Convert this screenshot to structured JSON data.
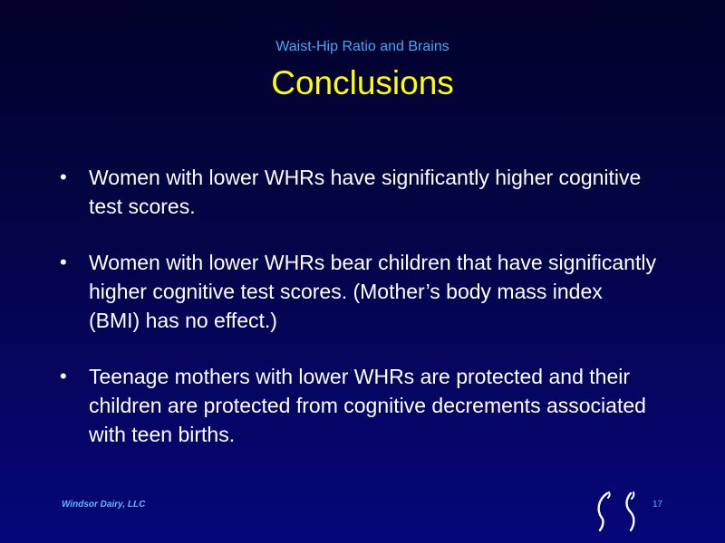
{
  "slide": {
    "subtitle": "Waist-Hip Ratio and Brains",
    "title": "Conclusions",
    "bullets": [
      "Women with lower WHRs have significantly higher cognitive test scores.",
      "Women with lower WHRs bear children that have significantly higher cognitive test scores. (Mother’s body mass index (BMI) has no effect.)",
      "Teenage mothers with lower WHRs are protected and their children are protected from cognitive decrements associated with teen births."
    ],
    "bullet_symbol": "•"
  },
  "footer": {
    "company": "Windsor Dairy, LLC",
    "page_number": "17"
  },
  "colors": {
    "background_top": "#01012a",
    "background_bottom": "#06067a",
    "subtitle": "#3fa9f5",
    "title": "#ffff00",
    "body_text": "#ffffff",
    "footer_text": "#5cb8ff"
  },
  "icons": {
    "logo": "curved-parentheses-logo-icon"
  }
}
